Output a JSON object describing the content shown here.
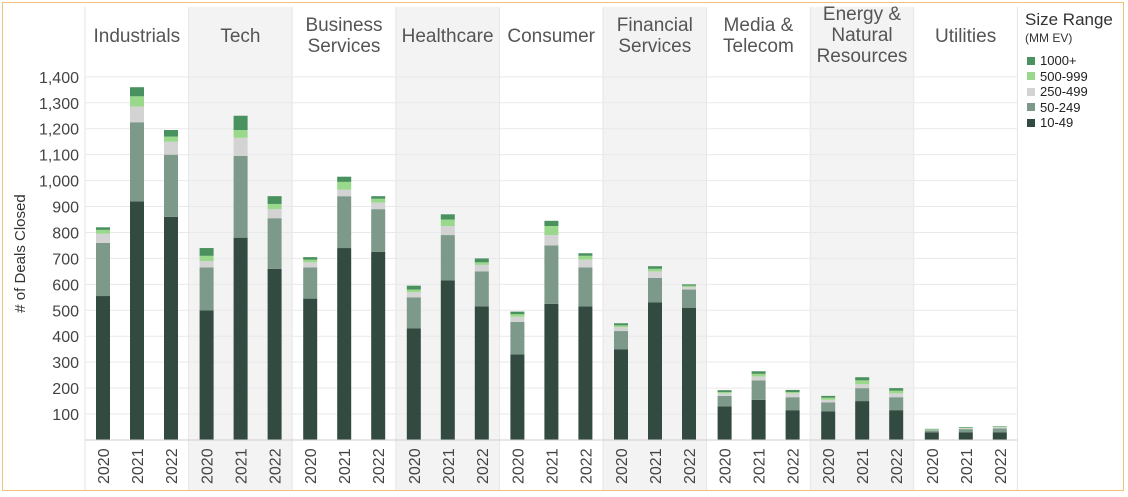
{
  "chart_data": {
    "type": "bar",
    "stacked": true,
    "ylabel": "# of Deals Closed",
    "ylim": [
      0,
      1400
    ],
    "yticks": [
      100,
      200,
      300,
      400,
      500,
      600,
      700,
      800,
      900,
      1000,
      1100,
      1200,
      1300,
      1400
    ],
    "ytick_labels": [
      "100",
      "200",
      "300",
      "400",
      "500",
      "600",
      "700",
      "800",
      "900",
      "1,000",
      "1,100",
      "1,200",
      "1,300",
      "1,400"
    ],
    "x_categories": [
      "2020",
      "2021",
      "2022"
    ],
    "grid": "horizontal",
    "legend": {
      "title": "Size Range",
      "subtitle": "(MM EV)",
      "placement": "right",
      "entries": [
        {
          "name": "1000+",
          "color": "#4a9160"
        },
        {
          "name": "500-999",
          "color": "#9ad88c"
        },
        {
          "name": "250-499",
          "color": "#d3d3d3"
        },
        {
          "name": "50-249",
          "color": "#7d9989"
        },
        {
          "name": "10-49",
          "color": "#334a41"
        }
      ]
    },
    "series_order": [
      "10-49",
      "50-249",
      "250-499",
      "500-999",
      "1000+"
    ],
    "colors": {
      "10-49": "#334a41",
      "50-249": "#7d9989",
      "250-499": "#d3d3d3",
      "500-999": "#9ad88c",
      "1000+": "#4a9160"
    },
    "panels": [
      {
        "label": "Industrials",
        "shaded": false,
        "values": {
          "10-49": [
            555,
            920,
            860
          ],
          "50-249": [
            205,
            305,
            240
          ],
          "250-499": [
            35,
            60,
            50
          ],
          "500-999": [
            15,
            40,
            20
          ],
          "1000+": [
            10,
            35,
            25
          ]
        }
      },
      {
        "label": "Tech",
        "shaded": true,
        "values": {
          "10-49": [
            500,
            780,
            660
          ],
          "50-249": [
            165,
            315,
            195
          ],
          "250-499": [
            25,
            70,
            35
          ],
          "500-999": [
            20,
            30,
            20
          ],
          "1000+": [
            30,
            55,
            30
          ]
        }
      },
      {
        "label": "Business\nServices",
        "shaded": false,
        "values": {
          "10-49": [
            545,
            740,
            725
          ],
          "50-249": [
            120,
            200,
            165
          ],
          "250-499": [
            20,
            25,
            25
          ],
          "500-999": [
            10,
            30,
            15
          ],
          "1000+": [
            10,
            20,
            10
          ]
        }
      },
      {
        "label": "Healthcare",
        "shaded": true,
        "values": {
          "10-49": [
            430,
            615,
            515
          ],
          "50-249": [
            120,
            175,
            135
          ],
          "250-499": [
            20,
            35,
            25
          ],
          "500-999": [
            10,
            25,
            10
          ],
          "1000+": [
            15,
            20,
            15
          ]
        }
      },
      {
        "label": "Consumer",
        "shaded": false,
        "values": {
          "10-49": [
            330,
            525,
            515
          ],
          "50-249": [
            125,
            225,
            150
          ],
          "250-499": [
            20,
            40,
            30
          ],
          "500-999": [
            10,
            35,
            15
          ],
          "1000+": [
            10,
            20,
            10
          ]
        }
      },
      {
        "label": "Financial\nServices",
        "shaded": true,
        "values": {
          "10-49": [
            350,
            530,
            510
          ],
          "50-249": [
            70,
            95,
            70
          ],
          "250-499": [
            15,
            25,
            10
          ],
          "500-999": [
            7,
            10,
            5
          ],
          "1000+": [
            8,
            10,
            5
          ]
        }
      },
      {
        "label": "Media &\nTelecom",
        "shaded": false,
        "values": {
          "10-49": [
            130,
            155,
            115
          ],
          "50-249": [
            40,
            75,
            50
          ],
          "250-499": [
            10,
            15,
            15
          ],
          "500-999": [
            5,
            10,
            5
          ],
          "1000+": [
            7,
            10,
            8
          ]
        }
      },
      {
        "label": "Energy &\nNatural\nResources",
        "shaded": true,
        "values": {
          "10-49": [
            110,
            150,
            115
          ],
          "50-249": [
            35,
            50,
            50
          ],
          "250-499": [
            10,
            15,
            15
          ],
          "500-999": [
            8,
            15,
            10
          ],
          "1000+": [
            7,
            12,
            10
          ]
        }
      },
      {
        "label": "Utilities",
        "shaded": false,
        "values": {
          "10-49": [
            30,
            30,
            30
          ],
          "50-249": [
            7,
            12,
            15
          ],
          "250-499": [
            2,
            4,
            4
          ],
          "500-999": [
            2,
            2,
            2
          ],
          "1000+": [
            2,
            2,
            2
          ]
        }
      }
    ]
  }
}
